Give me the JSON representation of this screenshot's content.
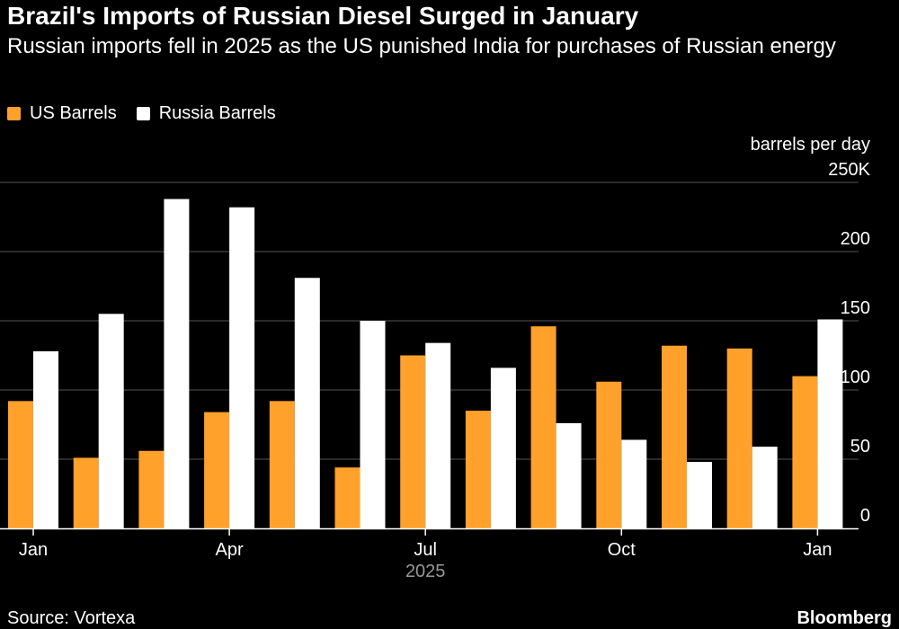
{
  "title": "Brazil's Imports of Russian Diesel Surged in January",
  "subtitle": "Russian imports fell in 2025 as the US punished India for purchases of Russian energy",
  "source": "Source: Vortexa",
  "brand": "Bloomberg",
  "colors": {
    "us": "#FFA12A",
    "russia": "#FFFFFF",
    "grid": "#555555",
    "axis": "#FFFFFF",
    "year_label": "#999999"
  },
  "chart_data": {
    "type": "bar",
    "unit": "barrels per day",
    "categories": [
      "Jan 2025",
      "Feb 2025",
      "Mar 2025",
      "Apr 2025",
      "May 2025",
      "Jun 2025",
      "Jul 2025",
      "Aug 2025",
      "Sep 2025",
      "Oct 2025",
      "Nov 2025",
      "Dec 2025",
      "Jan 2026"
    ],
    "series": [
      {
        "name": "US Barrels",
        "values": [
          92,
          51,
          56,
          84,
          92,
          44,
          125,
          85,
          146,
          106,
          132,
          130,
          110
        ]
      },
      {
        "name": "Russia Barrels",
        "values": [
          128,
          155,
          238,
          232,
          181,
          150,
          134,
          116,
          76,
          64,
          48,
          59,
          151
        ]
      }
    ],
    "ylim": [
      0,
      250
    ],
    "yticks": [
      {
        "value": 0,
        "label": "0"
      },
      {
        "value": 50,
        "label": "50"
      },
      {
        "value": 100,
        "label": "100"
      },
      {
        "value": 150,
        "label": "150"
      },
      {
        "value": 200,
        "label": "200"
      },
      {
        "value": 250,
        "label": "250K"
      }
    ],
    "xticks": [
      {
        "index": 0,
        "label": "Jan"
      },
      {
        "index": 3,
        "label": "Apr"
      },
      {
        "index": 6,
        "label": "Jul"
      },
      {
        "index": 9,
        "label": "Oct"
      },
      {
        "index": 12,
        "label": "Jan"
      }
    ],
    "year_label": "2025",
    "grid": true,
    "legend_position": "top-left"
  }
}
